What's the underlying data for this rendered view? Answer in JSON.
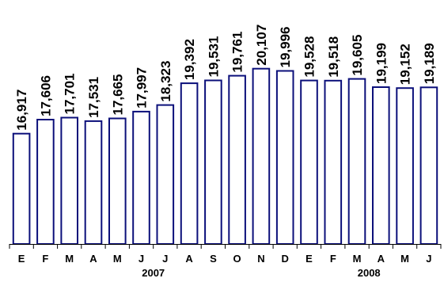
{
  "chart_data": {
    "type": "bar",
    "title": "",
    "xlabel": "",
    "ylabel": "",
    "categories": [
      "E",
      "F",
      "M",
      "A",
      "M",
      "J",
      "J",
      "A",
      "S",
      "O",
      "N",
      "D",
      "E",
      "F",
      "M",
      "A",
      "M",
      "J"
    ],
    "values": [
      16917,
      17606,
      17701,
      17531,
      17665,
      17997,
      18323,
      19392,
      19531,
      19761,
      20107,
      19996,
      19528,
      19518,
      19605,
      19199,
      19152,
      19189
    ],
    "data_labels": [
      "16,917",
      "17,606",
      "17,701",
      "17,531",
      "17,665",
      "17,997",
      "18,323",
      "19,392",
      "19,531",
      "19,761",
      "20,107",
      "19,996",
      "19,528",
      "19,518",
      "19,605",
      "19,199",
      "19,152",
      "19,189"
    ],
    "year_groups": [
      {
        "label": "2007",
        "start_index": 0,
        "end_index": 11
      },
      {
        "label": "2008",
        "start_index": 12,
        "end_index": 17
      }
    ],
    "ylim": [
      11500,
      20600
    ],
    "grid": false,
    "legend": "none",
    "bar_color": "#0b0f7a",
    "bar_fill": "#ffffff"
  }
}
